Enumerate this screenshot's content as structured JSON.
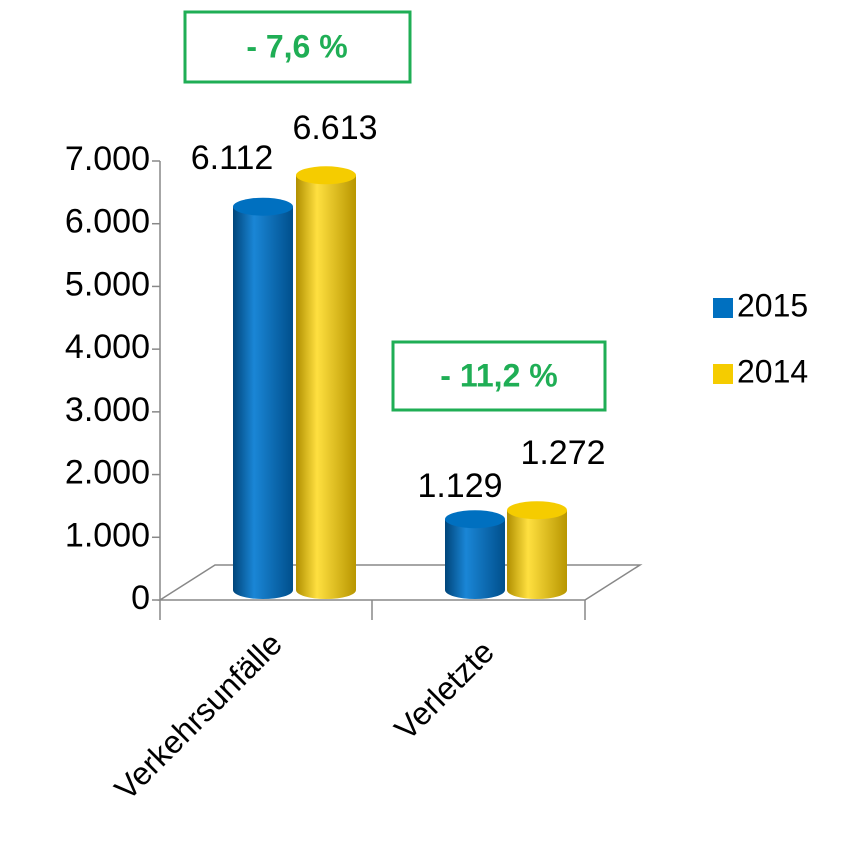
{
  "chart_data": {
    "type": "bar",
    "categories": [
      "Verkehrsunfälle",
      "Verletzte"
    ],
    "series": [
      {
        "name": "2015",
        "color": "#0070c0",
        "values": [
          6112,
          1129
        ],
        "value_labels": [
          "6.112",
          "1.129"
        ]
      },
      {
        "name": "2014",
        "color": "#f5cc00",
        "values": [
          6613,
          1272
        ],
        "value_labels": [
          "6.613",
          "1.272"
        ]
      }
    ],
    "ylim": [
      0,
      7000
    ],
    "yticks": [
      0,
      {
        "value": 1000,
        "label": "1.000"
      },
      {
        "value": 2000,
        "label": "2.000"
      },
      {
        "value": 3000,
        "label": "3.000"
      },
      {
        "value": 4000,
        "label": "4.000"
      },
      {
        "value": 5000,
        "label": "5.000"
      },
      {
        "value": 6000,
        "label": "6.000"
      },
      {
        "value": 7000,
        "label": "7.000"
      }
    ],
    "annotations": [
      "- 7,6 %",
      "- 11,2 %"
    ],
    "legend": "right"
  }
}
